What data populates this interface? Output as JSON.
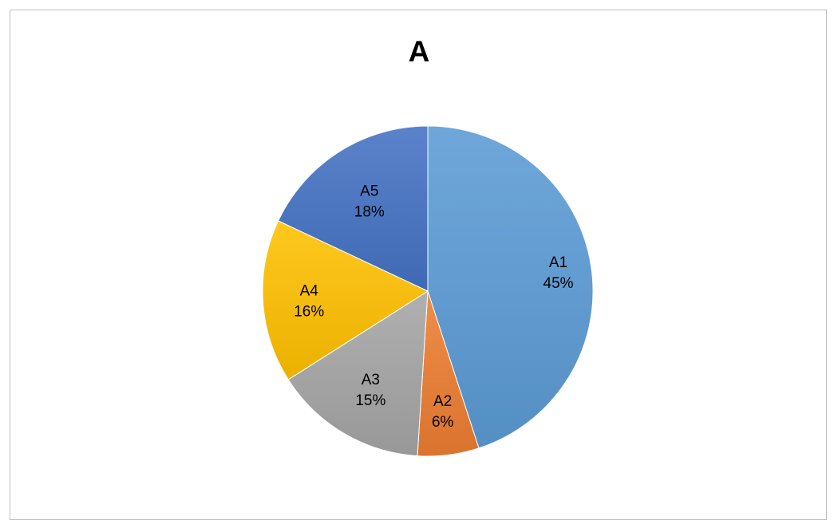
{
  "chart_data": {
    "type": "pie",
    "title": "A",
    "categories": [
      "A1",
      "A2",
      "A3",
      "A4",
      "A5"
    ],
    "values": [
      45,
      6,
      15,
      16,
      18
    ],
    "value_labels": [
      "45%",
      "6%",
      "15%",
      "16%",
      "18%"
    ],
    "colors": [
      "#5b9bd5",
      "#ed7d31",
      "#a5a5a5",
      "#ffc000",
      "#4472c4"
    ],
    "legend": "none",
    "data_labels": "category and percentage inside slices"
  }
}
